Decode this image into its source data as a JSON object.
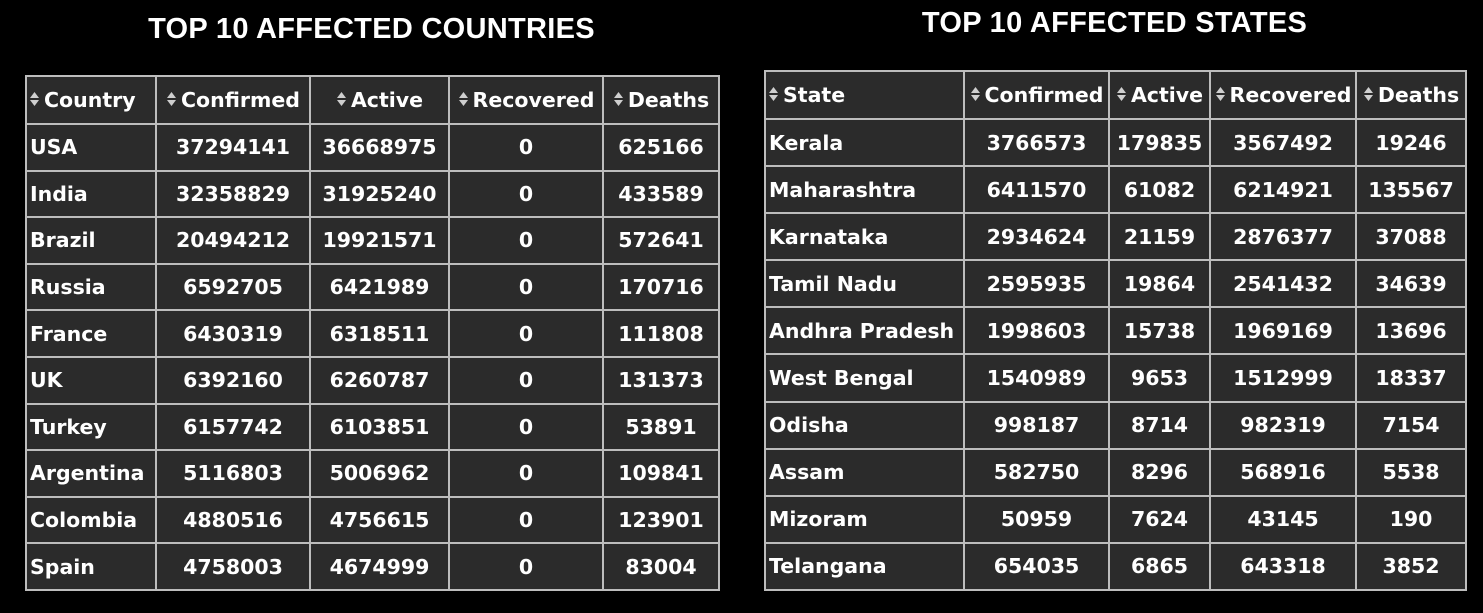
{
  "countries": {
    "title": "TOP 10 AFFECTED COUNTRIES",
    "headers": [
      "Country",
      "Confirmed",
      "Active",
      "Recovered",
      "Deaths"
    ],
    "rows": [
      [
        "USA",
        "37294141",
        "36668975",
        "0",
        "625166"
      ],
      [
        "India",
        "32358829",
        "31925240",
        "0",
        "433589"
      ],
      [
        "Brazil",
        "20494212",
        "19921571",
        "0",
        "572641"
      ],
      [
        "Russia",
        "6592705",
        "6421989",
        "0",
        "170716"
      ],
      [
        "France",
        "6430319",
        "6318511",
        "0",
        "111808"
      ],
      [
        "UK",
        "6392160",
        "6260787",
        "0",
        "131373"
      ],
      [
        "Turkey",
        "6157742",
        "6103851",
        "0",
        "53891"
      ],
      [
        "Argentina",
        "5116803",
        "5006962",
        "0",
        "109841"
      ],
      [
        "Colombia",
        "4880516",
        "4756615",
        "0",
        "123901"
      ],
      [
        "Spain",
        "4758003",
        "4674999",
        "0",
        "83004"
      ]
    ]
  },
  "states": {
    "title": "TOP 10 AFFECTED STATES",
    "headers": [
      "State",
      "Confirmed",
      "Active",
      "Recovered",
      "Deaths"
    ],
    "rows": [
      [
        "Kerala",
        "3766573",
        "179835",
        "3567492",
        "19246"
      ],
      [
        "Maharashtra",
        "6411570",
        "61082",
        "6214921",
        "135567"
      ],
      [
        "Karnataka",
        "2934624",
        "21159",
        "2876377",
        "37088"
      ],
      [
        "Tamil Nadu",
        "2595935",
        "19864",
        "2541432",
        "34639"
      ],
      [
        "Andhra Pradesh",
        "1998603",
        "15738",
        "1969169",
        "13696"
      ],
      [
        "West Bengal",
        "1540989",
        "9653",
        "1512999",
        "18337"
      ],
      [
        "Odisha",
        "998187",
        "8714",
        "982319",
        "7154"
      ],
      [
        "Assam",
        "582750",
        "8296",
        "568916",
        "5538"
      ],
      [
        "Mizoram",
        "50959",
        "7624",
        "43145",
        "190"
      ],
      [
        "Telangana",
        "654035",
        "6865",
        "643318",
        "3852"
      ]
    ]
  },
  "icons": {
    "sort": "sort-arrows-icon"
  },
  "colors": {
    "background": "#000000",
    "table_bg": "#2b2b2b",
    "border": "#bdbdbd",
    "text": "#ffffff"
  }
}
